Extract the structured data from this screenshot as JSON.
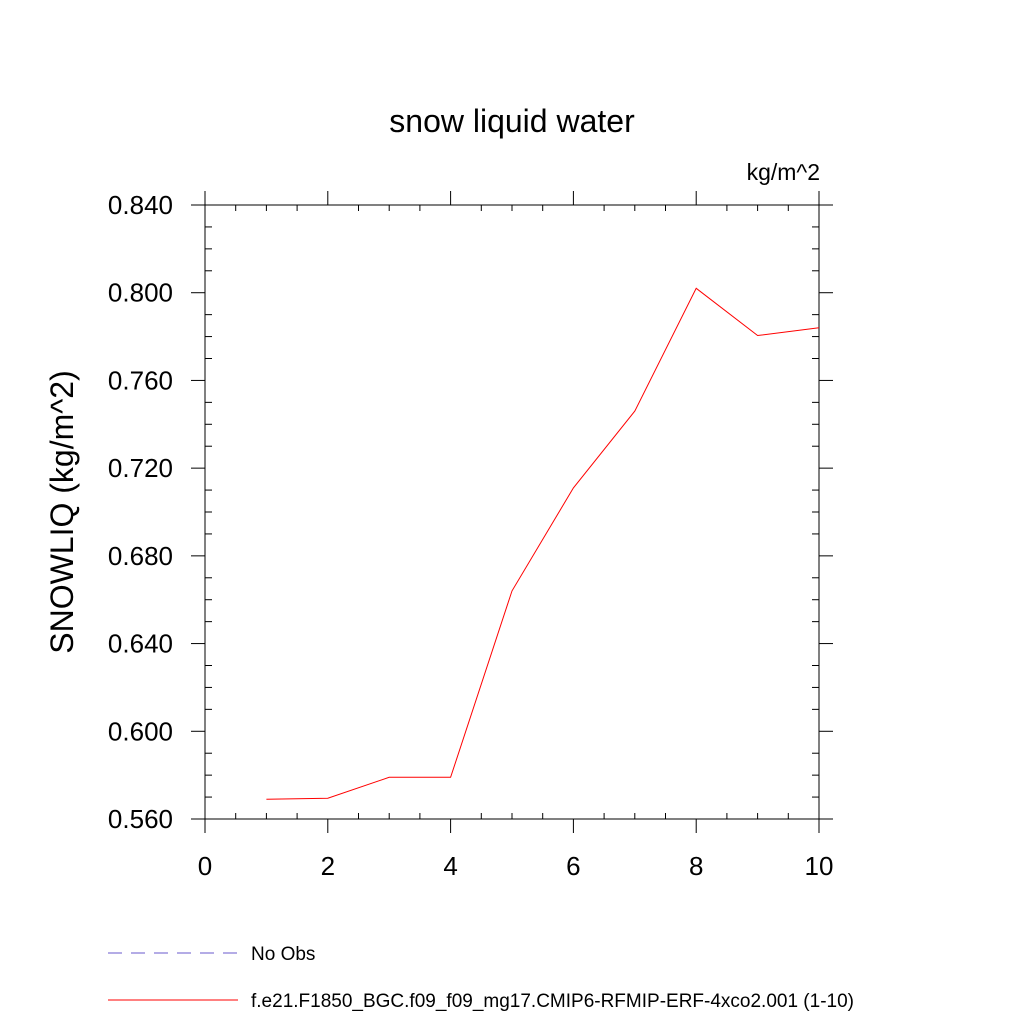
{
  "chart_data": {
    "type": "line",
    "title": "snow liquid water",
    "units_label": "kg/m^2",
    "ylabel": "SNOWLIQ  (kg/m^2)",
    "xlabel": "",
    "xlim": [
      0,
      10
    ],
    "ylim": [
      0.56,
      0.84
    ],
    "x_ticks": [
      0,
      2,
      4,
      6,
      8,
      10
    ],
    "x_tick_labels": [
      "0",
      "2",
      "4",
      "6",
      "8",
      "10"
    ],
    "y_ticks": [
      0.56,
      0.6,
      0.64,
      0.68,
      0.72,
      0.76,
      0.8,
      0.84
    ],
    "y_tick_labels": [
      "0.560",
      "0.600",
      "0.640",
      "0.680",
      "0.720",
      "0.760",
      "0.800",
      "0.840"
    ],
    "grid": false,
    "legend_placement": "bottom",
    "series": [
      {
        "name": "f.e21.F1850_BGC.f09_f09_mg17.CMIP6-RFMIP-ERF-4xco2.001 (1-10)",
        "color": "#ff0000",
        "dash": "solid",
        "x": [
          1,
          2,
          3,
          4,
          5,
          6,
          7,
          8,
          9,
          10
        ],
        "values": [
          0.569,
          0.5695,
          0.579,
          0.579,
          0.664,
          0.711,
          0.746,
          0.802,
          0.7805,
          0.784
        ]
      }
    ],
    "legend": [
      {
        "label": "No Obs",
        "color": "#6a5acd",
        "dash": "dashed"
      },
      {
        "label": "f.e21.F1850_BGC.f09_f09_mg17.CMIP6-RFMIP-ERF-4xco2.001 (1-10)",
        "color": "#ff0000",
        "dash": "solid"
      }
    ]
  }
}
